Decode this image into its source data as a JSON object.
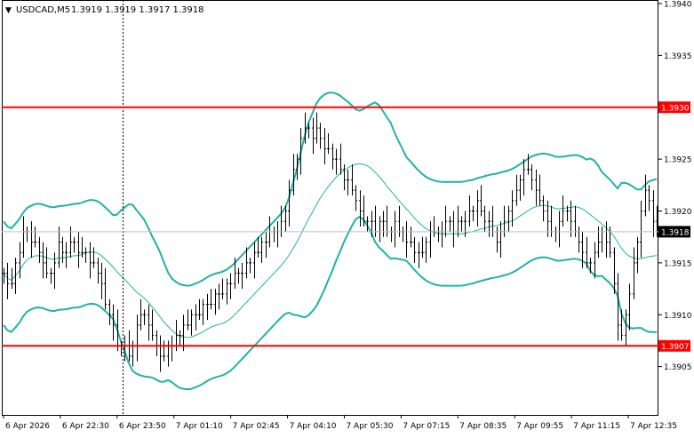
{
  "header": {
    "menu_glyph": "▼",
    "symbol_timeframe": "USDCAD,M5",
    "ohlc": "1.3919 1.3919 1.3917 1.3918"
  },
  "price_scale": {
    "ticks": [
      "1.3940",
      "1.3935",
      "1.3925",
      "1.3920",
      "1.3915",
      "1.3910",
      "1.3905"
    ],
    "tick_values": [
      1.394,
      1.3935,
      1.3925,
      1.392,
      1.3915,
      1.391,
      1.3905
    ]
  },
  "time_scale": {
    "ticks": [
      "6 Apr 2026",
      "6 Apr 22:30",
      "6 Apr 23:50",
      "7 Apr 01:10",
      "7 Apr 02:45",
      "7 Apr 04:10",
      "7 Apr 05:30",
      "7 Apr 07:15",
      "7 Apr 08:35",
      "7 Apr 09:55",
      "7 Apr 11:15",
      "7 Apr 12:35"
    ],
    "tick_index": [
      0,
      16,
      32,
      48,
      64,
      80,
      96,
      112,
      128,
      144,
      160,
      176
    ]
  },
  "levels": [
    {
      "name": "resistance",
      "value": 1.393,
      "label": "1.3930",
      "color": "#ff0000"
    },
    {
      "name": "support",
      "value": 1.3907,
      "label": "1.3907",
      "color": "#ff0000"
    }
  ],
  "current_price": {
    "value": 1.3918,
    "label": "1.3918",
    "color": "#c0c0c0"
  },
  "colors": {
    "candles": "#000000",
    "bollinger": "#20b2aa",
    "grid": "#c0c0c0"
  },
  "chart_data": {
    "type": "candlestick",
    "symbol": "USDCAD",
    "timeframe": "M5",
    "ylim": [
      1.39,
      1.394
    ],
    "close": [
      1.3914,
      1.3913,
      1.3913,
      1.3915,
      1.3916,
      1.3918,
      1.3918,
      1.3917,
      1.3917,
      1.3916,
      1.3915,
      1.3914,
      1.3914,
      1.3915,
      1.3917,
      1.3916,
      1.3916,
      1.3917,
      1.3917,
      1.3916,
      1.3916,
      1.3916,
      1.3915,
      1.3915,
      1.3914,
      1.3913,
      1.3911,
      1.391,
      1.3909,
      1.3907,
      1.3907,
      1.3907,
      1.3906,
      1.3907,
      1.3909,
      1.391,
      1.391,
      1.3909,
      1.3908,
      1.3907,
      1.3906,
      1.3906,
      1.3907,
      1.3907,
      1.3908,
      1.3908,
      1.3909,
      1.3909,
      1.391,
      1.391,
      1.391,
      1.3911,
      1.3911,
      1.3911,
      1.3912,
      1.3912,
      1.3912,
      1.3913,
      1.3913,
      1.3914,
      1.3914,
      1.3914,
      1.3915,
      1.3915,
      1.3916,
      1.3916,
      1.3917,
      1.3917,
      1.3918,
      1.3918,
      1.3918,
      1.3919,
      1.392,
      1.3922,
      1.3924,
      1.3925,
      1.3927,
      1.3928,
      1.3928,
      1.3927,
      1.3928,
      1.3927,
      1.3926,
      1.3926,
      1.3925,
      1.3925,
      1.3924,
      1.3923,
      1.3923,
      1.3922,
      1.3921,
      1.392,
      1.3919,
      1.3919,
      1.3919,
      1.3918,
      1.3919,
      1.3919,
      1.3918,
      1.3918,
      1.3919,
      1.3918,
      1.3918,
      1.3917,
      1.3917,
      1.3916,
      1.3916,
      1.3916,
      1.3917,
      1.3918,
      1.3918,
      1.3918,
      1.3918,
      1.3919,
      1.3919,
      1.3918,
      1.3919,
      1.3919,
      1.3919,
      1.392,
      1.392,
      1.3921,
      1.392,
      1.3919,
      1.3919,
      1.3918,
      1.3917,
      1.3918,
      1.3919,
      1.392,
      1.3921,
      1.3922,
      1.3923,
      1.3924,
      1.3924,
      1.3923,
      1.3922,
      1.3921,
      1.392,
      1.3919,
      1.3918,
      1.3918,
      1.3919,
      1.392,
      1.392,
      1.3919,
      1.3918,
      1.3917,
      1.3916,
      1.3915,
      1.3915,
      1.3916,
      1.3917,
      1.3918,
      1.3917,
      1.3916,
      1.3913,
      1.3909,
      1.3908,
      1.391,
      1.3912,
      1.3915,
      1.3917,
      1.392,
      1.3922,
      1.3921,
      1.3919,
      1.3918
    ]
  }
}
